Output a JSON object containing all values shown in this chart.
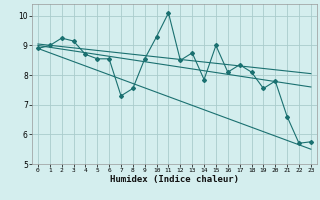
{
  "xlabel": "Humidex (Indice chaleur)",
  "xlim": [
    -0.5,
    23.5
  ],
  "ylim": [
    5,
    10.4
  ],
  "yticks": [
    5,
    6,
    7,
    8,
    9,
    10
  ],
  "xticks": [
    0,
    1,
    2,
    3,
    4,
    5,
    6,
    7,
    8,
    9,
    10,
    11,
    12,
    13,
    14,
    15,
    16,
    17,
    18,
    19,
    20,
    21,
    22,
    23
  ],
  "bg_color": "#d4eeee",
  "grid_color": "#aacccc",
  "line_color": "#1a7070",
  "line1_x": [
    0,
    1,
    2,
    3,
    4,
    5,
    6,
    7,
    8,
    9,
    10,
    11,
    12,
    13,
    14,
    15,
    16,
    17,
    18,
    19,
    20,
    21,
    22,
    23
  ],
  "line1_y": [
    8.9,
    9.0,
    9.25,
    9.15,
    8.7,
    8.55,
    8.55,
    7.3,
    7.55,
    8.55,
    9.3,
    10.1,
    8.5,
    8.75,
    7.85,
    9.0,
    8.1,
    8.35,
    8.1,
    7.55,
    7.8,
    6.6,
    5.7,
    5.75
  ],
  "trend1_x": [
    0,
    23
  ],
  "trend1_y": [
    9.05,
    8.05
  ],
  "trend2_x": [
    0,
    23
  ],
  "trend2_y": [
    9.0,
    7.6
  ],
  "trend3_x": [
    0,
    23
  ],
  "trend3_y": [
    8.9,
    5.5
  ]
}
